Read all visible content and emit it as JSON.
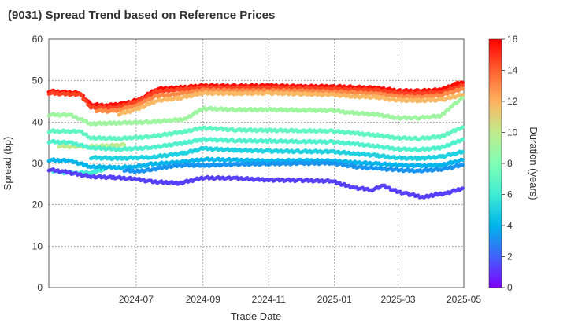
{
  "chart_data": {
    "type": "scatter",
    "title": "(9031)   Spread Trend based on Reference Prices",
    "xlabel": "Trade Date",
    "ylabel": "Spread (bp)",
    "ylim": [
      0,
      60
    ],
    "yticks": [
      0,
      10,
      20,
      30,
      40,
      50,
      60
    ],
    "xlim": [
      "2024-04-11",
      "2025-05-01"
    ],
    "xticks": [
      "2024-07-01",
      "2024-09-01",
      "2024-11-01",
      "2025-01-01",
      "2025-03-01",
      "2025-05-01"
    ],
    "xtick_labels": [
      "2024-07",
      "2024-09",
      "2024-11",
      "2025-01",
      "2025-03",
      "2025-05"
    ],
    "grid": true,
    "colorbar": {
      "label": "Duration (years)",
      "range": [
        0,
        16
      ],
      "ticks": [
        0,
        2,
        4,
        6,
        8,
        10,
        12,
        14,
        16
      ],
      "colormap": "rainbow"
    },
    "series": [
      {
        "duration": 15.8,
        "points": [
          [
            "2024-04-11",
            47.5
          ],
          [
            "2024-04-25",
            47.2
          ],
          [
            "2024-05-10",
            47.0
          ],
          [
            "2024-05-20",
            44.2
          ],
          [
            "2024-06-05",
            44.0
          ],
          [
            "2024-06-20",
            44.5
          ],
          [
            "2024-07-05",
            45.5
          ],
          [
            "2024-07-20",
            48.0
          ],
          [
            "2024-08-10",
            48.3
          ],
          [
            "2024-09-01",
            48.8
          ],
          [
            "2024-10-01",
            48.7
          ],
          [
            "2024-11-01",
            48.8
          ],
          [
            "2024-12-01",
            48.6
          ],
          [
            "2024-12-30",
            48.6
          ],
          [
            "2025-01-20",
            48.4
          ],
          [
            "2025-02-10",
            48.2
          ],
          [
            "2025-02-28",
            47.6
          ],
          [
            "2025-03-20",
            47.5
          ],
          [
            "2025-04-10",
            47.8
          ],
          [
            "2025-04-25",
            49.3
          ],
          [
            "2025-04-30",
            49.5
          ]
        ]
      },
      {
        "duration": 14.6,
        "points": [
          [
            "2024-04-11",
            47.0
          ],
          [
            "2024-05-10",
            46.6
          ],
          [
            "2024-05-20",
            43.6
          ],
          [
            "2024-06-10",
            43.4
          ],
          [
            "2024-07-01",
            44.8
          ],
          [
            "2024-07-20",
            47.4
          ],
          [
            "2024-08-10",
            47.8
          ],
          [
            "2024-09-01",
            48.3
          ],
          [
            "2024-10-01",
            48.2
          ],
          [
            "2024-11-01",
            48.3
          ],
          [
            "2024-12-01",
            48.1
          ],
          [
            "2024-12-30",
            48.0
          ],
          [
            "2025-01-20",
            47.8
          ],
          [
            "2025-02-10",
            47.7
          ],
          [
            "2025-02-28",
            47.0
          ],
          [
            "2025-03-20",
            46.9
          ],
          [
            "2025-04-10",
            47.2
          ],
          [
            "2025-04-30",
            48.8
          ]
        ]
      },
      {
        "duration": 13.0,
        "points": [
          [
            "2024-05-25",
            42.8
          ],
          [
            "2024-06-10",
            42.6
          ],
          [
            "2024-07-01",
            44.0
          ],
          [
            "2024-07-20",
            46.3
          ],
          [
            "2024-08-10",
            46.8
          ],
          [
            "2024-09-01",
            47.7
          ],
          [
            "2024-10-01",
            47.6
          ],
          [
            "2024-11-01",
            47.6
          ],
          [
            "2024-12-01",
            47.5
          ],
          [
            "2024-12-30",
            47.3
          ],
          [
            "2025-01-20",
            47.1
          ],
          [
            "2025-02-10",
            46.8
          ],
          [
            "2025-02-28",
            46.2
          ],
          [
            "2025-03-20",
            46.0
          ],
          [
            "2025-04-10",
            46.5
          ],
          [
            "2025-04-30",
            48.0
          ]
        ]
      },
      {
        "duration": 11.8,
        "points": [
          [
            "2024-06-15",
            42.0
          ],
          [
            "2024-07-01",
            43.0
          ],
          [
            "2024-07-20",
            45.2
          ],
          [
            "2024-08-10",
            45.8
          ],
          [
            "2024-09-01",
            47.0
          ],
          [
            "2024-10-01",
            46.9
          ],
          [
            "2024-11-01",
            47.0
          ],
          [
            "2024-12-01",
            46.8
          ],
          [
            "2024-12-30",
            46.6
          ],
          [
            "2025-01-20",
            46.2
          ],
          [
            "2025-02-10",
            46.0
          ],
          [
            "2025-02-28",
            45.3
          ],
          [
            "2025-03-20",
            45.2
          ],
          [
            "2025-04-10",
            45.4
          ],
          [
            "2025-04-30",
            46.6
          ]
        ]
      },
      {
        "duration": 9.0,
        "points": [
          [
            "2024-04-11",
            41.8
          ],
          [
            "2024-05-01",
            41.7
          ],
          [
            "2024-05-20",
            39.6
          ],
          [
            "2024-06-15",
            39.8
          ],
          [
            "2024-07-15",
            40.0
          ],
          [
            "2024-08-15",
            40.7
          ],
          [
            "2024-09-01",
            43.3
          ],
          [
            "2024-10-01",
            43.0
          ],
          [
            "2024-11-01",
            43.0
          ],
          [
            "2024-12-01",
            42.9
          ],
          [
            "2024-12-30",
            42.8
          ],
          [
            "2025-01-15",
            42.3
          ],
          [
            "2025-02-10",
            41.8
          ],
          [
            "2025-02-28",
            41.0
          ],
          [
            "2025-03-20",
            41.0
          ],
          [
            "2025-04-10",
            41.5
          ],
          [
            "2025-04-20",
            44.0
          ],
          [
            "2025-04-30",
            45.8
          ]
        ]
      },
      {
        "duration": 10.0,
        "points": [
          [
            "2024-04-20",
            34.2
          ],
          [
            "2024-05-10",
            34.0
          ],
          [
            "2024-06-01",
            34.2
          ],
          [
            "2024-06-20",
            34.5
          ]
        ]
      },
      {
        "duration": 7.0,
        "points": [
          [
            "2024-04-11",
            37.8
          ],
          [
            "2024-05-10",
            37.7
          ],
          [
            "2024-05-20",
            36.2
          ],
          [
            "2024-06-15",
            36.0
          ],
          [
            "2024-07-15",
            36.5
          ],
          [
            "2024-08-15",
            37.7
          ],
          [
            "2024-09-01",
            38.6
          ],
          [
            "2024-10-01",
            38.1
          ],
          [
            "2024-11-01",
            38.0
          ],
          [
            "2024-12-01",
            37.9
          ],
          [
            "2024-12-30",
            37.8
          ],
          [
            "2025-01-20",
            37.3
          ],
          [
            "2025-02-10",
            36.8
          ],
          [
            "2025-02-28",
            36.2
          ],
          [
            "2025-03-20",
            36.0
          ],
          [
            "2025-04-10",
            36.5
          ],
          [
            "2025-04-30",
            38.8
          ]
        ]
      },
      {
        "duration": 6.5,
        "points": [
          [
            "2024-04-11",
            35.3
          ],
          [
            "2024-05-01",
            35.0
          ],
          [
            "2024-05-20",
            33.8
          ],
          [
            "2024-06-15",
            33.4
          ],
          [
            "2024-07-15",
            33.8
          ],
          [
            "2024-08-15",
            35.0
          ],
          [
            "2024-09-01",
            35.8
          ],
          [
            "2024-10-01",
            35.5
          ],
          [
            "2024-11-01",
            35.4
          ],
          [
            "2024-12-01",
            35.3
          ],
          [
            "2024-12-30",
            35.2
          ],
          [
            "2025-01-20",
            34.7
          ],
          [
            "2025-02-10",
            34.1
          ],
          [
            "2025-02-28",
            33.5
          ],
          [
            "2025-03-20",
            33.3
          ],
          [
            "2025-04-10",
            33.8
          ],
          [
            "2025-04-30",
            35.8
          ]
        ]
      },
      {
        "duration": 6.0,
        "points": [
          [
            "2024-04-15",
            28.2
          ],
          [
            "2024-05-01",
            27.6
          ],
          [
            "2024-05-20",
            27.8
          ],
          [
            "2024-06-01",
            28.5
          ]
        ]
      },
      {
        "duration": 5.0,
        "points": [
          [
            "2024-05-20",
            31.4
          ],
          [
            "2024-06-15",
            31.2
          ],
          [
            "2024-07-15",
            31.5
          ],
          [
            "2024-08-15",
            32.5
          ],
          [
            "2024-09-01",
            33.6
          ],
          [
            "2024-10-01",
            33.2
          ],
          [
            "2024-11-01",
            33.0
          ],
          [
            "2024-12-01",
            32.9
          ],
          [
            "2024-12-30",
            32.8
          ],
          [
            "2025-01-20",
            32.4
          ],
          [
            "2025-02-10",
            31.9
          ],
          [
            "2025-02-28",
            31.3
          ],
          [
            "2025-03-20",
            31.2
          ],
          [
            "2025-04-10",
            31.6
          ],
          [
            "2025-04-30",
            32.8
          ]
        ]
      },
      {
        "duration": 4.0,
        "points": [
          [
            "2024-04-11",
            30.8
          ],
          [
            "2024-05-01",
            30.6
          ],
          [
            "2024-05-20",
            29.2
          ],
          [
            "2024-06-15",
            29.0
          ],
          [
            "2024-07-01",
            29.2
          ],
          [
            "2024-07-15",
            29.8
          ],
          [
            "2024-08-15",
            30.4
          ],
          [
            "2024-09-01",
            31.0
          ],
          [
            "2024-10-01",
            30.8
          ],
          [
            "2024-11-01",
            30.6
          ],
          [
            "2024-12-01",
            30.7
          ],
          [
            "2024-12-30",
            30.6
          ],
          [
            "2025-01-20",
            30.2
          ],
          [
            "2025-02-10",
            29.9
          ],
          [
            "2025-02-28",
            29.6
          ],
          [
            "2025-03-20",
            29.4
          ],
          [
            "2025-04-10",
            29.6
          ],
          [
            "2025-04-30",
            30.8
          ]
        ]
      },
      {
        "duration": 3.2,
        "points": [
          [
            "2024-06-20",
            28.4
          ],
          [
            "2024-07-01",
            28.0
          ],
          [
            "2024-07-15",
            28.5
          ],
          [
            "2024-08-01",
            29.3
          ],
          [
            "2024-08-15",
            29.6
          ],
          [
            "2024-09-01",
            29.5
          ],
          [
            "2024-10-01",
            29.8
          ],
          [
            "2024-11-01",
            29.9
          ],
          [
            "2024-12-01",
            30.0
          ],
          [
            "2024-12-30",
            30.1
          ],
          [
            "2025-01-20",
            29.2
          ],
          [
            "2025-02-10",
            28.8
          ],
          [
            "2025-02-28",
            28.4
          ],
          [
            "2025-03-20",
            28.2
          ],
          [
            "2025-04-10",
            28.6
          ],
          [
            "2025-04-30",
            29.6
          ]
        ]
      },
      {
        "duration": 1.3,
        "points": [
          [
            "2024-04-11",
            28.5
          ],
          [
            "2024-04-25",
            28.0
          ],
          [
            "2024-05-20",
            26.8
          ],
          [
            "2024-06-10",
            26.6
          ],
          [
            "2024-07-01",
            26.2
          ],
          [
            "2024-07-15",
            25.6
          ],
          [
            "2024-08-10",
            25.2
          ],
          [
            "2024-09-01",
            26.5
          ],
          [
            "2024-10-01",
            26.4
          ],
          [
            "2024-11-01",
            26.0
          ],
          [
            "2024-12-01",
            25.9
          ],
          [
            "2024-12-30",
            25.7
          ],
          [
            "2025-01-10",
            24.8
          ],
          [
            "2025-01-20",
            24.1
          ],
          [
            "2025-02-05",
            23.6
          ],
          [
            "2025-02-15",
            24.6
          ],
          [
            "2025-02-28",
            23.2
          ],
          [
            "2025-03-10",
            22.6
          ],
          [
            "2025-03-25",
            21.8
          ],
          [
            "2025-04-05",
            22.5
          ],
          [
            "2025-04-15",
            22.8
          ],
          [
            "2025-04-30",
            24.0
          ]
        ]
      }
    ]
  }
}
